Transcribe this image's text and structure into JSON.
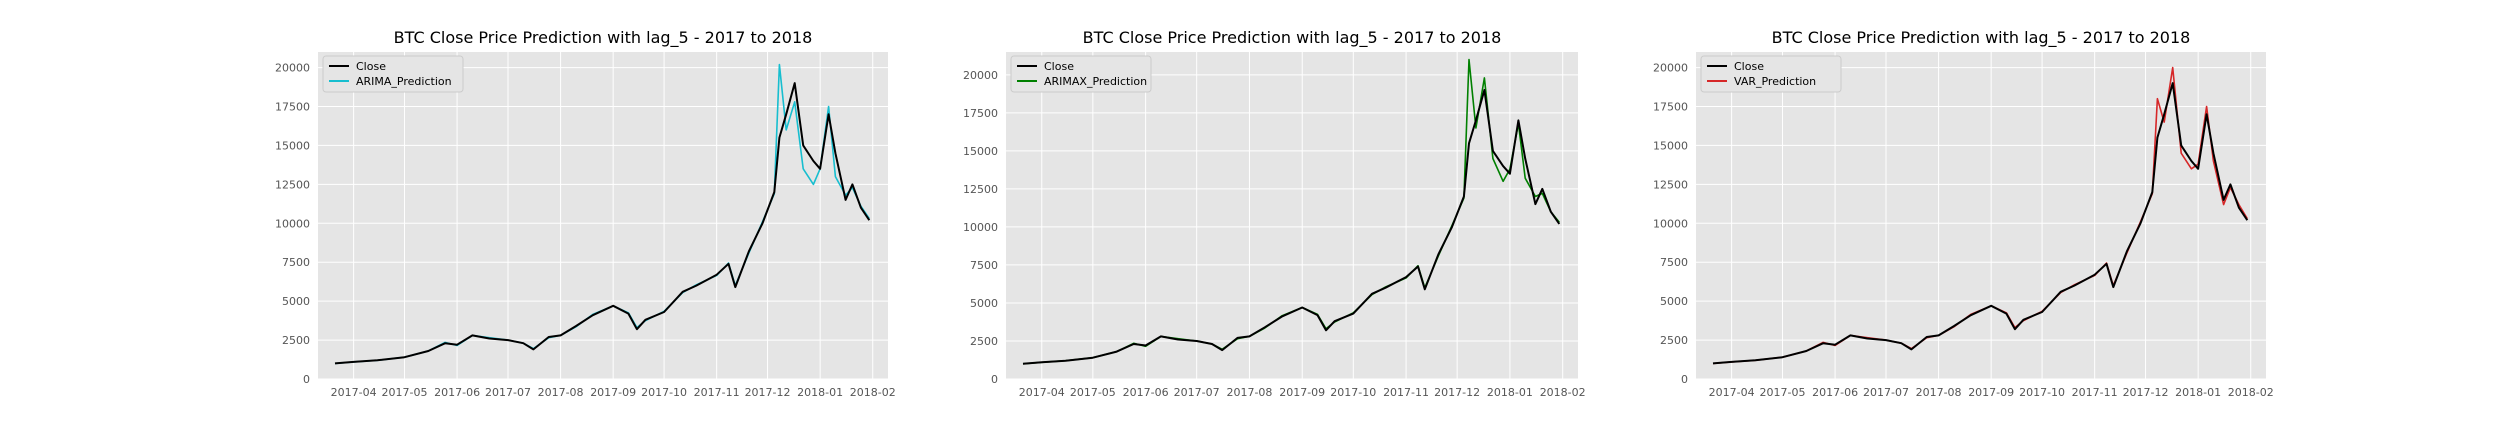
{
  "chart_data": [
    {
      "type": "line",
      "title": "BTC Close Price Prediction with lag_5 - 2017 to 2018",
      "xlabel": "",
      "ylabel": "",
      "x_ticks": [
        "2017-04",
        "2017-05",
        "2017-06",
        "2017-07",
        "2017-08",
        "2017-09",
        "2017-10",
        "2017-11",
        "2017-12",
        "2018-01",
        "2018-02"
      ],
      "y_ticks": [
        "0",
        "2500",
        "5000",
        "7500",
        "10000",
        "12500",
        "15000",
        "17500",
        "20000"
      ],
      "ylim": [
        0,
        21000
      ],
      "grid": true,
      "legend_position": "top-left",
      "x": [
        "2017-03-21",
        "2017-04-01",
        "2017-04-15",
        "2017-05-01",
        "2017-05-15",
        "2017-05-25",
        "2017-06-01",
        "2017-06-10",
        "2017-06-20",
        "2017-07-01",
        "2017-07-10",
        "2017-07-16",
        "2017-07-25",
        "2017-08-01",
        "2017-08-10",
        "2017-08-20",
        "2017-09-01",
        "2017-09-10",
        "2017-09-15",
        "2017-09-20",
        "2017-10-01",
        "2017-10-12",
        "2017-10-20",
        "2017-11-01",
        "2017-11-08",
        "2017-11-12",
        "2017-11-20",
        "2017-11-28",
        "2017-12-05",
        "2017-12-08",
        "2017-12-12",
        "2017-12-17",
        "2017-12-22",
        "2017-12-28",
        "2018-01-01",
        "2018-01-06",
        "2018-01-10",
        "2018-01-16",
        "2018-01-20",
        "2018-01-25",
        "2018-01-30"
      ],
      "series": [
        {
          "name": "Close",
          "color": "#000000",
          "values": [
            1000,
            1100,
            1200,
            1400,
            1800,
            2300,
            2200,
            2800,
            2600,
            2500,
            2300,
            1900,
            2700,
            2800,
            3400,
            4100,
            4700,
            4200,
            3200,
            3800,
            4300,
            5600,
            6000,
            6700,
            7400,
            5900,
            8200,
            10000,
            12000,
            15500,
            17000,
            19000,
            15000,
            14000,
            13500,
            17000,
            14500,
            11500,
            12500,
            11000,
            10200
          ]
        },
        {
          "name": "ARIMA_Prediction",
          "color": "#17becf",
          "values": [
            1000,
            1100,
            1200,
            1400,
            1800,
            2350,
            2150,
            2800,
            2650,
            2500,
            2300,
            1950,
            2650,
            2800,
            3350,
            4150,
            4700,
            4250,
            3300,
            3750,
            4350,
            5550,
            6050,
            6650,
            7450,
            6000,
            8100,
            10100,
            11900,
            20200,
            16000,
            17800,
            13500,
            12500,
            13500,
            17500,
            13000,
            11800,
            12300,
            11100,
            10300
          ]
        }
      ]
    },
    {
      "type": "line",
      "title": "BTC Close Price Prediction with lag_5 - 2017 to 2018",
      "xlabel": "",
      "ylabel": "",
      "x_ticks": [
        "2017-04",
        "2017-05",
        "2017-06",
        "2017-07",
        "2017-08",
        "2017-09",
        "2017-10",
        "2017-11",
        "2017-12",
        "2018-01",
        "2018-02"
      ],
      "y_ticks": [
        "0",
        "2500",
        "5000",
        "7500",
        "10000",
        "12500",
        "15000",
        "17500",
        "20000"
      ],
      "ylim": [
        0,
        21500
      ],
      "grid": true,
      "legend_position": "top-left",
      "x": [
        "2017-03-21",
        "2017-04-01",
        "2017-04-15",
        "2017-05-01",
        "2017-05-15",
        "2017-05-25",
        "2017-06-01",
        "2017-06-10",
        "2017-06-20",
        "2017-07-01",
        "2017-07-10",
        "2017-07-16",
        "2017-07-25",
        "2017-08-01",
        "2017-08-10",
        "2017-08-20",
        "2017-09-01",
        "2017-09-10",
        "2017-09-15",
        "2017-09-20",
        "2017-10-01",
        "2017-10-12",
        "2017-10-20",
        "2017-11-01",
        "2017-11-08",
        "2017-11-12",
        "2017-11-20",
        "2017-11-28",
        "2017-12-05",
        "2017-12-08",
        "2017-12-12",
        "2017-12-17",
        "2017-12-22",
        "2017-12-28",
        "2018-01-01",
        "2018-01-06",
        "2018-01-10",
        "2018-01-16",
        "2018-01-20",
        "2018-01-25",
        "2018-01-30"
      ],
      "series": [
        {
          "name": "Close",
          "color": "#000000",
          "values": [
            1000,
            1100,
            1200,
            1400,
            1800,
            2300,
            2200,
            2800,
            2600,
            2500,
            2300,
            1900,
            2700,
            2800,
            3400,
            4100,
            4700,
            4200,
            3200,
            3800,
            4300,
            5600,
            6000,
            6700,
            7400,
            5900,
            8200,
            10000,
            12000,
            15500,
            17000,
            19000,
            15000,
            14000,
            13500,
            17000,
            14500,
            11500,
            12500,
            11000,
            10200
          ]
        },
        {
          "name": "ARIMAX_Prediction",
          "color": "#008000",
          "values": [
            1000,
            1100,
            1200,
            1400,
            1800,
            2350,
            2150,
            2800,
            2650,
            2500,
            2300,
            1950,
            2650,
            2800,
            3350,
            4150,
            4700,
            4250,
            3300,
            3750,
            4350,
            5550,
            6050,
            6650,
            7450,
            6000,
            8100,
            10100,
            11900,
            21000,
            16500,
            19800,
            14500,
            13000,
            13800,
            16800,
            13200,
            12000,
            12200,
            11000,
            10300
          ]
        }
      ]
    },
    {
      "type": "line",
      "title": "BTC Close Price Prediction with lag_5 - 2017 to 2018",
      "xlabel": "",
      "ylabel": "",
      "x_ticks": [
        "2017-04",
        "2017-05",
        "2017-06",
        "2017-07",
        "2017-08",
        "2017-09",
        "2017-10",
        "2017-11",
        "2017-12",
        "2018-01",
        "2018-02"
      ],
      "y_ticks": [
        "0",
        "2500",
        "5000",
        "7500",
        "10000",
        "12500",
        "15000",
        "17500",
        "20000"
      ],
      "ylim": [
        0,
        21000
      ],
      "grid": true,
      "legend_position": "top-left",
      "x": [
        "2017-03-21",
        "2017-04-01",
        "2017-04-15",
        "2017-05-01",
        "2017-05-15",
        "2017-05-25",
        "2017-06-01",
        "2017-06-10",
        "2017-06-20",
        "2017-07-01",
        "2017-07-10",
        "2017-07-16",
        "2017-07-25",
        "2017-08-01",
        "2017-08-10",
        "2017-08-20",
        "2017-09-01",
        "2017-09-10",
        "2017-09-15",
        "2017-09-20",
        "2017-10-01",
        "2017-10-12",
        "2017-10-20",
        "2017-11-01",
        "2017-11-08",
        "2017-11-12",
        "2017-11-20",
        "2017-11-28",
        "2017-12-05",
        "2017-12-08",
        "2017-12-12",
        "2017-12-17",
        "2017-12-22",
        "2017-12-28",
        "2018-01-01",
        "2018-01-06",
        "2018-01-10",
        "2018-01-16",
        "2018-01-20",
        "2018-01-25",
        "2018-01-30"
      ],
      "series": [
        {
          "name": "Close",
          "color": "#000000",
          "values": [
            1000,
            1100,
            1200,
            1400,
            1800,
            2300,
            2200,
            2800,
            2600,
            2500,
            2300,
            1900,
            2700,
            2800,
            3400,
            4100,
            4700,
            4200,
            3200,
            3800,
            4300,
            5600,
            6000,
            6700,
            7400,
            5900,
            8200,
            10000,
            12000,
            15500,
            17000,
            19000,
            15000,
            14000,
            13500,
            17000,
            14500,
            11500,
            12500,
            11000,
            10200
          ]
        },
        {
          "name": "VAR_Prediction",
          "color": "#d62728",
          "values": [
            1000,
            1100,
            1200,
            1400,
            1800,
            2350,
            2150,
            2800,
            2650,
            2500,
            2300,
            1950,
            2650,
            2800,
            3350,
            4150,
            4700,
            4250,
            3300,
            3750,
            4350,
            5550,
            6050,
            6650,
            7450,
            6000,
            8100,
            10100,
            11900,
            18000,
            16500,
            20000,
            14500,
            13500,
            13800,
            17500,
            14000,
            11200,
            12300,
            11200,
            10300
          ]
        }
      ]
    }
  ]
}
